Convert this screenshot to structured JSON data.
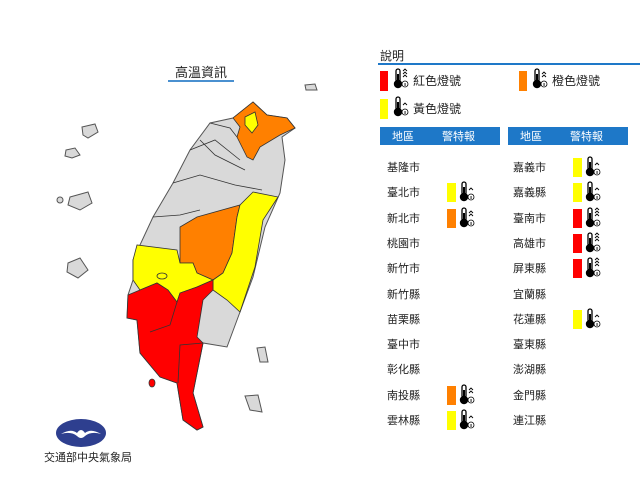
{
  "title": "高溫資訊",
  "organization": "交通部中央氣象局",
  "colors": {
    "red": "#ff0000",
    "orange": "#ff8000",
    "yellow": "#ffff00",
    "none": "#d9d9d9",
    "header": "#1e78c8",
    "logo": "#2e3f8f"
  },
  "legend": {
    "title": "說明",
    "items": [
      {
        "label": "紅色燈號",
        "color": "#ff0000",
        "icon": "thermometer-level-3-icon"
      },
      {
        "label": "橙色燈號",
        "color": "#ff8000",
        "icon": "thermometer-level-2-icon"
      },
      {
        "label": "黃色燈號",
        "color": "#ffff00",
        "icon": "thermometer-level-1-icon"
      }
    ]
  },
  "table": {
    "headers": [
      "地區",
      "警特報"
    ],
    "left": [
      {
        "region": "基隆市",
        "level": ""
      },
      {
        "region": "臺北市",
        "level": "yellow"
      },
      {
        "region": "新北市",
        "level": "orange"
      },
      {
        "region": "桃園市",
        "level": ""
      },
      {
        "region": "新竹市",
        "level": ""
      },
      {
        "region": "新竹縣",
        "level": ""
      },
      {
        "region": "苗栗縣",
        "level": ""
      },
      {
        "region": "臺中市",
        "level": ""
      },
      {
        "region": "彰化縣",
        "level": ""
      },
      {
        "region": "南投縣",
        "level": "orange"
      },
      {
        "region": "雲林縣",
        "level": "yellow"
      }
    ],
    "right": [
      {
        "region": "嘉義市",
        "level": "yellow"
      },
      {
        "region": "嘉義縣",
        "level": "yellow"
      },
      {
        "region": "臺南市",
        "level": "red"
      },
      {
        "region": "高雄市",
        "level": "red"
      },
      {
        "region": "屏東縣",
        "level": "red"
      },
      {
        "region": "宜蘭縣",
        "level": ""
      },
      {
        "region": "花蓮縣",
        "level": "yellow"
      },
      {
        "region": "臺東縣",
        "level": ""
      },
      {
        "region": "澎湖縣",
        "level": ""
      },
      {
        "region": "金門縣",
        "level": ""
      },
      {
        "region": "連江縣",
        "level": ""
      }
    ]
  }
}
